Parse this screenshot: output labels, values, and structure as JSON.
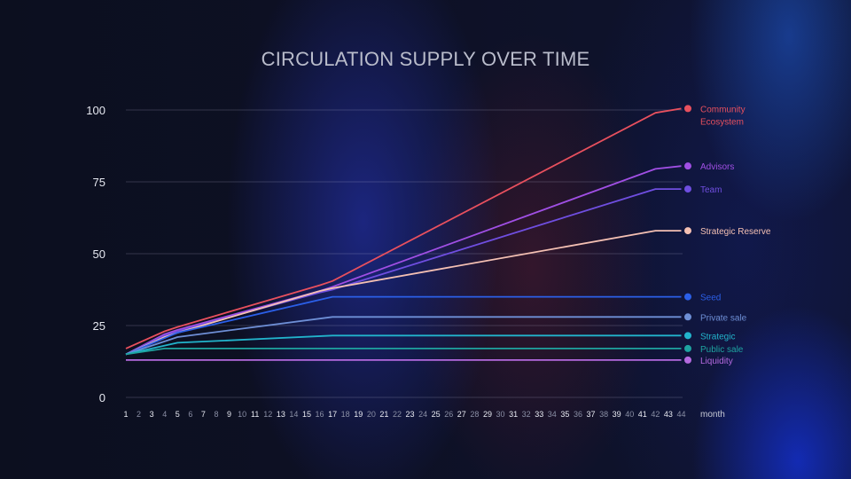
{
  "chart_data": {
    "type": "line",
    "title": "CIRCULATION SUPPLY OVER TIME",
    "xlabel": "month",
    "ylabel": "",
    "ylim": [
      0,
      100
    ],
    "yticks": [
      0,
      25,
      50,
      75,
      100
    ],
    "x": [
      1,
      2,
      3,
      4,
      5,
      6,
      7,
      8,
      9,
      10,
      11,
      12,
      13,
      14,
      15,
      16,
      17,
      18,
      19,
      20,
      21,
      22,
      23,
      24,
      25,
      26,
      27,
      28,
      29,
      30,
      31,
      32,
      33,
      34,
      35,
      36,
      37,
      38,
      39,
      40,
      41,
      42,
      43,
      44
    ],
    "bold_ticks": [
      1,
      3,
      5,
      7,
      9,
      11,
      13,
      15,
      17,
      19,
      21,
      23,
      25,
      27,
      29,
      31,
      33,
      35,
      37,
      39,
      41,
      43
    ],
    "grid": true,
    "legend": "right",
    "series": [
      {
        "name": "Community Ecosystem",
        "color": "#e8505e",
        "points": [
          [
            1,
            17
          ],
          [
            4,
            23
          ],
          [
            5,
            24.5
          ],
          [
            16,
            39
          ],
          [
            17,
            40.5
          ],
          [
            42,
            99
          ],
          [
            44,
            100.5
          ]
        ]
      },
      {
        "name": "Advisors",
        "color": "#a04fe4",
        "points": [
          [
            1,
            15
          ],
          [
            4,
            22
          ],
          [
            5,
            23.5
          ],
          [
            16,
            37
          ],
          [
            17,
            38.5
          ],
          [
            42,
            79.5
          ],
          [
            44,
            80.5
          ]
        ]
      },
      {
        "name": "Team",
        "color": "#6f4ee0",
        "points": [
          [
            1,
            15
          ],
          [
            4,
            21.5
          ],
          [
            5,
            23
          ],
          [
            16,
            36.5
          ],
          [
            17,
            37.5
          ],
          [
            42,
            72.5
          ],
          [
            44,
            72.5
          ]
        ]
      },
      {
        "name": "Strategic Reserve",
        "color": "#f4c0b3",
        "points": [
          [
            1,
            15
          ],
          [
            4,
            21
          ],
          [
            5,
            22.5
          ],
          [
            16,
            37
          ],
          [
            17,
            38
          ],
          [
            42,
            58
          ],
          [
            44,
            58
          ]
        ]
      },
      {
        "name": "Seed",
        "color": "#2b5fe8",
        "points": [
          [
            1,
            15
          ],
          [
            5,
            22.5
          ],
          [
            17,
            35
          ],
          [
            44,
            35
          ]
        ]
      },
      {
        "name": "Private sale",
        "color": "#6e8fd6",
        "points": [
          [
            1,
            15
          ],
          [
            5,
            21
          ],
          [
            17,
            28
          ],
          [
            44,
            28
          ]
        ]
      },
      {
        "name": "Strategic",
        "color": "#22b4cc",
        "points": [
          [
            1,
            15
          ],
          [
            5,
            19
          ],
          [
            17,
            21.5
          ],
          [
            44,
            21.5
          ]
        ]
      },
      {
        "name": "Public sale",
        "color": "#1ea3a0",
        "points": [
          [
            1,
            15
          ],
          [
            4,
            17
          ],
          [
            5,
            17
          ],
          [
            44,
            17
          ]
        ]
      },
      {
        "name": "Liquidity",
        "color": "#b56ae0",
        "points": [
          [
            1,
            13
          ],
          [
            44,
            13
          ]
        ]
      }
    ]
  }
}
